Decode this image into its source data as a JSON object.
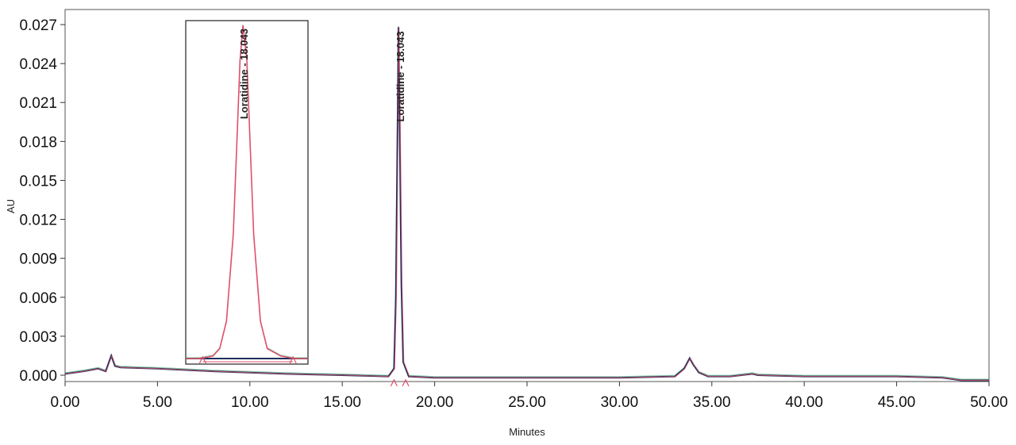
{
  "chart_data": {
    "type": "line",
    "title": "",
    "xlabel": "Minutes",
    "ylabel": "AU",
    "xlim": [
      0,
      50
    ],
    "ylim": [
      -0.0006,
      0.0275
    ],
    "x_ticks": [
      "0.00",
      "5.00",
      "10.00",
      "15.00",
      "20.00",
      "25.00",
      "30.00",
      "35.00",
      "40.00",
      "45.00",
      "50.00"
    ],
    "y_ticks": [
      "0.000",
      "0.003",
      "0.006",
      "0.009",
      "0.012",
      "0.015",
      "0.018",
      "0.021",
      "0.024",
      "0.027"
    ],
    "series": [
      {
        "color": "#1a2f5c",
        "x": [
          0.0,
          1.0,
          1.8,
          2.2,
          2.5,
          2.7,
          3.0,
          5.0,
          8.0,
          10.0,
          12.0,
          15.0,
          17.5,
          17.8,
          17.9,
          18.0,
          18.043,
          18.1,
          18.2,
          18.3,
          18.6,
          20.0,
          25.0,
          30.0,
          33.0,
          33.5,
          33.8,
          34.0,
          34.3,
          34.8,
          36.0,
          37.2,
          37.5,
          40.0,
          45.0,
          47.5,
          48.5,
          50.0
        ],
        "y": [
          0.0001,
          0.0003,
          0.0005,
          0.0003,
          0.0015,
          0.0007,
          0.0006,
          0.0005,
          0.0003,
          0.0002,
          0.0001,
          0.0,
          -0.0001,
          0.0005,
          0.006,
          0.02,
          0.0268,
          0.02,
          0.007,
          0.001,
          -0.0001,
          -0.0002,
          -0.0002,
          -0.0002,
          -0.0001,
          0.0005,
          0.0013,
          0.0008,
          0.0002,
          -0.0001,
          -0.0001,
          0.0001,
          0.0,
          -0.0001,
          -0.0001,
          -0.0002,
          -0.0004,
          -0.0004
        ]
      }
    ],
    "peak_label": "Loratidine - 18.043",
    "inset": {
      "peak_label": "Loratidine - 18.043",
      "x": [
        17.2,
        17.4,
        17.6,
        17.7,
        17.8,
        17.9,
        17.95,
        18.0,
        18.043,
        18.1,
        18.15,
        18.2,
        18.3,
        18.4,
        18.6,
        18.8,
        19.0
      ],
      "y": [
        0.0,
        0.0,
        0.0002,
        0.0008,
        0.003,
        0.01,
        0.017,
        0.024,
        0.0268,
        0.024,
        0.017,
        0.01,
        0.003,
        0.0008,
        0.0002,
        0.0,
        0.0
      ]
    }
  }
}
